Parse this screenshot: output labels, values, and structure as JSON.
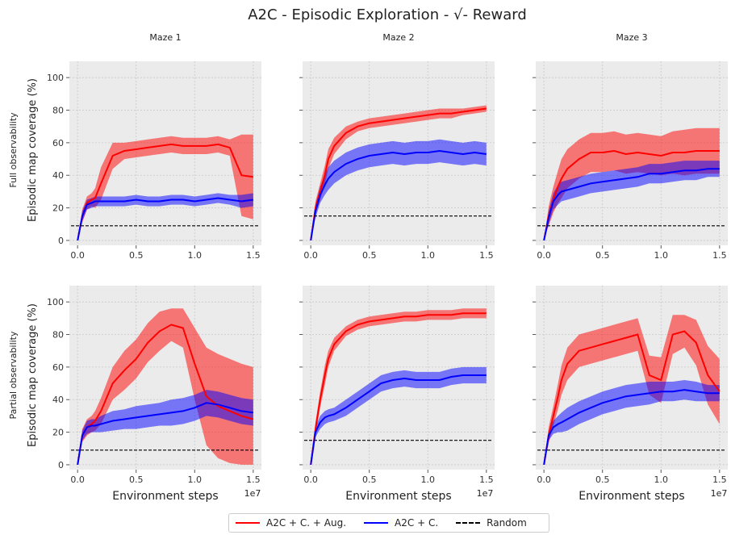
{
  "title": "A2C - Episodic Exploration - √- Reward",
  "columns": [
    "Maze 1",
    "Maze 2",
    "Maze 3"
  ],
  "rows": [
    "Full observability",
    "Partial observability"
  ],
  "ylabel": "Episodic map coverage (%)",
  "xlabel": "Environment steps",
  "x_offset_text": "1e7",
  "legend": {
    "items": [
      {
        "label": "A2C + C. + Aug.",
        "color": "#ff0000",
        "style": "solid"
      },
      {
        "label": "A2C + C.",
        "color": "#0000ff",
        "style": "solid"
      },
      {
        "label": "Random",
        "color": "#000000",
        "style": "dashed"
      }
    ]
  },
  "chart_data": [
    {
      "type": "line",
      "row": 0,
      "col": 0,
      "x": [
        0,
        0.04,
        0.08,
        0.12,
        0.15,
        0.2,
        0.3,
        0.4,
        0.5,
        0.6,
        0.7,
        0.8,
        0.9,
        1.0,
        1.1,
        1.2,
        1.3,
        1.4,
        1.5
      ],
      "xlim": [
        -0.07,
        1.57
      ],
      "ylim": [
        -3,
        110
      ],
      "xticks": [
        0,
        0.5,
        1,
        1.5
      ],
      "xticklabels": [
        "0.0",
        "0.5",
        "1.0",
        "1.5"
      ],
      "yticks": [
        0,
        20,
        40,
        60,
        80,
        100
      ],
      "random": 9,
      "series": [
        {
          "name": "A2C + C. + Aug.",
          "color": "#ff0000",
          "values": [
            0,
            15,
            23,
            25,
            26,
            35,
            52,
            55,
            56,
            57,
            58,
            59,
            58,
            58,
            58,
            59,
            57,
            40,
            39
          ],
          "band": [
            0,
            4,
            4,
            4,
            6,
            10,
            8,
            5,
            5,
            5,
            5,
            5,
            5,
            5,
            5,
            5,
            5,
            25,
            26
          ]
        },
        {
          "name": "A2C + C.",
          "color": "#0000ff",
          "values": [
            0,
            15,
            22,
            23,
            24,
            24,
            24,
            24,
            25,
            24,
            24,
            25,
            25,
            24,
            25,
            26,
            25,
            24,
            25
          ],
          "band": [
            0,
            3,
            3,
            3,
            3,
            3,
            3,
            3,
            3,
            3,
            3,
            3,
            3,
            3,
            3,
            3,
            3,
            4,
            4
          ]
        }
      ]
    },
    {
      "type": "line",
      "row": 0,
      "col": 1,
      "x": [
        0,
        0.04,
        0.08,
        0.12,
        0.15,
        0.2,
        0.3,
        0.4,
        0.5,
        0.6,
        0.7,
        0.8,
        0.9,
        1.0,
        1.1,
        1.2,
        1.3,
        1.4,
        1.5
      ],
      "xlim": [
        -0.07,
        1.57
      ],
      "ylim": [
        -3,
        110
      ],
      "xticks": [
        0,
        0.5,
        1,
        1.5
      ],
      "xticklabels": [
        "0.0",
        "0.5",
        "1.0",
        "1.5"
      ],
      "yticks": [
        0,
        20,
        40,
        60,
        80,
        100
      ],
      "random": 15,
      "series": [
        {
          "name": "A2C + C. + Aug.",
          "color": "#ff0000",
          "values": [
            0,
            20,
            30,
            40,
            50,
            58,
            66,
            70,
            72,
            73,
            74,
            75,
            76,
            77,
            78,
            78,
            79,
            80,
            81
          ],
          "band": [
            0,
            4,
            5,
            6,
            6,
            5,
            4,
            3,
            3,
            3,
            3,
            3,
            3,
            3,
            3,
            3,
            2,
            2,
            2
          ]
        },
        {
          "name": "A2C + C.",
          "color": "#0000ff",
          "values": [
            0,
            18,
            28,
            34,
            38,
            42,
            47,
            50,
            52,
            53,
            54,
            53,
            54,
            54,
            55,
            54,
            53,
            54,
            53
          ],
          "band": [
            0,
            4,
            5,
            6,
            7,
            7,
            7,
            7,
            7,
            7,
            7,
            7,
            7,
            7,
            7,
            7,
            7,
            7,
            7
          ]
        }
      ]
    },
    {
      "type": "line",
      "row": 0,
      "col": 2,
      "x": [
        0,
        0.04,
        0.08,
        0.12,
        0.15,
        0.2,
        0.3,
        0.4,
        0.5,
        0.6,
        0.7,
        0.8,
        0.9,
        1.0,
        1.1,
        1.2,
        1.3,
        1.4,
        1.5
      ],
      "xlim": [
        -0.07,
        1.57
      ],
      "ylim": [
        -3,
        110
      ],
      "xticks": [
        0,
        0.5,
        1,
        1.5
      ],
      "xticklabels": [
        "0.0",
        "0.5",
        "1.0",
        "1.5"
      ],
      "yticks": [
        0,
        20,
        40,
        60,
        80,
        100
      ],
      "random": 9,
      "series": [
        {
          "name": "A2C + C. + Aug.",
          "color": "#ff0000",
          "values": [
            0,
            15,
            25,
            33,
            38,
            44,
            50,
            54,
            54,
            55,
            53,
            54,
            53,
            52,
            54,
            54,
            55,
            55,
            55
          ],
          "band": [
            0,
            6,
            8,
            10,
            12,
            12,
            12,
            12,
            12,
            12,
            12,
            12,
            12,
            12,
            13,
            14,
            14,
            14,
            14
          ]
        },
        {
          "name": "A2C + C.",
          "color": "#0000ff",
          "values": [
            0,
            14,
            24,
            28,
            30,
            31,
            33,
            35,
            36,
            37,
            38,
            39,
            41,
            41,
            42,
            43,
            43,
            44,
            44
          ],
          "band": [
            0,
            4,
            5,
            6,
            6,
            6,
            6,
            6,
            6,
            6,
            6,
            6,
            6,
            6,
            6,
            6,
            6,
            5,
            5
          ]
        }
      ]
    },
    {
      "type": "line",
      "row": 1,
      "col": 0,
      "x": [
        0,
        0.04,
        0.08,
        0.12,
        0.15,
        0.2,
        0.3,
        0.4,
        0.5,
        0.6,
        0.7,
        0.8,
        0.9,
        1.0,
        1.1,
        1.2,
        1.3,
        1.4,
        1.5
      ],
      "xlim": [
        -0.07,
        1.57
      ],
      "ylim": [
        -3,
        110
      ],
      "xticks": [
        0,
        0.5,
        1,
        1.5
      ],
      "xticklabels": [
        "0.0",
        "0.5",
        "1.0",
        "1.5"
      ],
      "yticks": [
        0,
        20,
        40,
        60,
        80,
        100
      ],
      "random": 9,
      "series": [
        {
          "name": "A2C + C. + Aug.",
          "color": "#ff0000",
          "values": [
            0,
            18,
            23,
            25,
            27,
            33,
            50,
            58,
            65,
            75,
            82,
            86,
            84,
            62,
            42,
            36,
            33,
            30,
            28
          ],
          "band": [
            0,
            4,
            5,
            5,
            6,
            8,
            10,
            12,
            12,
            12,
            12,
            10,
            12,
            22,
            30,
            32,
            32,
            32,
            32
          ]
        },
        {
          "name": "A2C + C.",
          "color": "#0000ff",
          "values": [
            0,
            18,
            23,
            24,
            24,
            25,
            27,
            28,
            29,
            30,
            31,
            32,
            33,
            35,
            38,
            37,
            35,
            33,
            32
          ],
          "band": [
            0,
            3,
            4,
            4,
            4,
            5,
            6,
            6,
            7,
            7,
            7,
            8,
            8,
            8,
            8,
            8,
            8,
            8,
            8
          ]
        }
      ]
    },
    {
      "type": "line",
      "row": 1,
      "col": 1,
      "x": [
        0,
        0.04,
        0.08,
        0.12,
        0.15,
        0.2,
        0.3,
        0.4,
        0.5,
        0.6,
        0.7,
        0.8,
        0.9,
        1.0,
        1.1,
        1.2,
        1.3,
        1.4,
        1.5
      ],
      "xlim": [
        -0.07,
        1.57
      ],
      "ylim": [
        -3,
        110
      ],
      "xticks": [
        0,
        0.5,
        1,
        1.5
      ],
      "xticklabels": [
        "0.0",
        "0.5",
        "1.0",
        "1.5"
      ],
      "yticks": [
        0,
        20,
        40,
        60,
        80,
        100
      ],
      "random": 15,
      "series": [
        {
          "name": "A2C + C. + Aug.",
          "color": "#ff0000",
          "values": [
            0,
            22,
            40,
            55,
            65,
            74,
            82,
            86,
            88,
            89,
            90,
            91,
            91,
            92,
            92,
            92,
            93,
            93,
            93
          ],
          "band": [
            0,
            4,
            5,
            6,
            5,
            4,
            3,
            3,
            3,
            3,
            3,
            3,
            3,
            3,
            3,
            3,
            3,
            3,
            3
          ]
        },
        {
          "name": "A2C + C.",
          "color": "#0000ff",
          "values": [
            0,
            20,
            26,
            29,
            30,
            31,
            35,
            40,
            45,
            50,
            52,
            53,
            52,
            52,
            52,
            54,
            55,
            55,
            55
          ],
          "band": [
            0,
            3,
            4,
            4,
            4,
            4,
            5,
            5,
            5,
            5,
            5,
            5,
            5,
            5,
            5,
            5,
            5,
            5,
            5
          ]
        }
      ]
    },
    {
      "type": "line",
      "row": 1,
      "col": 2,
      "x": [
        0,
        0.04,
        0.08,
        0.12,
        0.15,
        0.2,
        0.3,
        0.4,
        0.5,
        0.6,
        0.7,
        0.8,
        0.9,
        1.0,
        1.1,
        1.2,
        1.3,
        1.4,
        1.5
      ],
      "xlim": [
        -0.07,
        1.57
      ],
      "ylim": [
        -3,
        110
      ],
      "xticks": [
        0,
        0.5,
        1,
        1.5
      ],
      "xticklabels": [
        "0.0",
        "0.5",
        "1.0",
        "1.5"
      ],
      "yticks": [
        0,
        20,
        40,
        60,
        80,
        100
      ],
      "random": 9,
      "series": [
        {
          "name": "A2C + C. + Aug.",
          "color": "#ff0000",
          "values": [
            0,
            18,
            30,
            42,
            52,
            62,
            70,
            72,
            74,
            76,
            78,
            80,
            55,
            52,
            80,
            82,
            75,
            55,
            45
          ],
          "band": [
            0,
            5,
            6,
            8,
            9,
            10,
            10,
            10,
            10,
            10,
            10,
            10,
            12,
            14,
            12,
            10,
            14,
            18,
            20
          ]
        },
        {
          "name": "A2C + C.",
          "color": "#0000ff",
          "values": [
            0,
            18,
            23,
            25,
            26,
            28,
            32,
            35,
            38,
            40,
            42,
            43,
            44,
            45,
            45,
            46,
            45,
            44,
            44
          ],
          "band": [
            0,
            3,
            4,
            5,
            6,
            7,
            7,
            7,
            7,
            7,
            7,
            7,
            7,
            6,
            6,
            6,
            6,
            5,
            5
          ]
        }
      ]
    }
  ]
}
